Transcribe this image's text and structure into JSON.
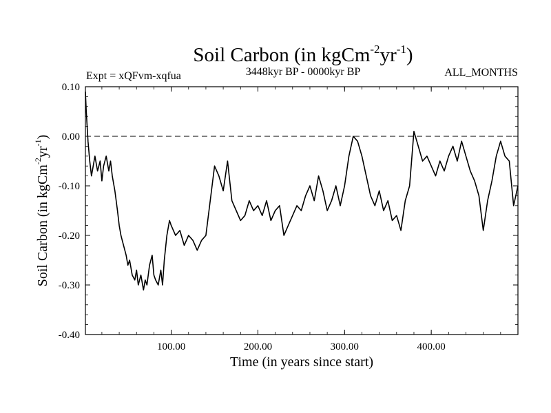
{
  "chart_data": {
    "type": "line",
    "title_main": "Soil Carbon (in kgCm",
    "title_sup1": "-2",
    "title_mid": "yr",
    "title_sup2": "-1",
    "title_end": ")",
    "subtitle_left": "Expt = xQFvm-xqfua",
    "subtitle_center": "3448kyr BP - 0000kyr BP",
    "subtitle_right": "ALL_MONTHS",
    "xlabel": "Time (in years since start)",
    "ylabel_main": "Soil Carbon (in kgCm",
    "ylabel_sup1": "-2",
    "ylabel_mid": "yr",
    "ylabel_sup2": "-1",
    "ylabel_end": ")",
    "xlim": [
      1,
      500
    ],
    "ylim": [
      -0.4,
      0.1
    ],
    "xticks": [
      100,
      200,
      300,
      400
    ],
    "xtick_labels": [
      "100.00",
      "200.00",
      "300.00",
      "400.00"
    ],
    "yticks": [
      0.1,
      0.0,
      -0.1,
      -0.2,
      -0.3,
      -0.4
    ],
    "ytick_labels": [
      "0.10",
      "0.00",
      "-0.10",
      "-0.20",
      "-0.30",
      "-0.40"
    ],
    "reference_line": {
      "y": 0.0,
      "style": "dashed"
    },
    "line_color": "#000000",
    "series": [
      {
        "name": "Soil Carbon",
        "x": [
          1,
          2,
          4,
          6,
          8,
          10,
          12,
          15,
          18,
          20,
          22,
          25,
          28,
          30,
          32,
          35,
          38,
          40,
          42,
          45,
          48,
          50,
          52,
          55,
          58,
          60,
          62,
          65,
          68,
          70,
          72,
          75,
          78,
          80,
          82,
          85,
          88,
          90,
          92,
          95,
          98,
          100,
          105,
          110,
          115,
          120,
          125,
          130,
          135,
          140,
          145,
          150,
          155,
          160,
          165,
          170,
          175,
          180,
          185,
          190,
          195,
          200,
          205,
          210,
          215,
          220,
          225,
          230,
          235,
          240,
          245,
          250,
          255,
          260,
          265,
          270,
          275,
          280,
          285,
          290,
          295,
          300,
          305,
          310,
          315,
          320,
          325,
          330,
          335,
          340,
          345,
          350,
          355,
          360,
          365,
          370,
          375,
          380,
          385,
          390,
          395,
          400,
          405,
          410,
          415,
          420,
          425,
          430,
          435,
          440,
          445,
          450,
          455,
          460,
          465,
          470,
          475,
          480,
          485,
          490,
          495,
          500
        ],
        "y": [
          0.09,
          0.05,
          -0.01,
          -0.05,
          -0.08,
          -0.06,
          -0.04,
          -0.07,
          -0.05,
          -0.09,
          -0.06,
          -0.04,
          -0.07,
          -0.05,
          -0.08,
          -0.11,
          -0.15,
          -0.18,
          -0.2,
          -0.22,
          -0.24,
          -0.26,
          -0.25,
          -0.28,
          -0.29,
          -0.27,
          -0.3,
          -0.28,
          -0.31,
          -0.29,
          -0.3,
          -0.26,
          -0.24,
          -0.28,
          -0.29,
          -0.3,
          -0.27,
          -0.3,
          -0.25,
          -0.2,
          -0.17,
          -0.18,
          -0.2,
          -0.19,
          -0.22,
          -0.2,
          -0.21,
          -0.23,
          -0.21,
          -0.2,
          -0.13,
          -0.06,
          -0.08,
          -0.11,
          -0.05,
          -0.13,
          -0.15,
          -0.17,
          -0.16,
          -0.13,
          -0.15,
          -0.14,
          -0.16,
          -0.13,
          -0.17,
          -0.15,
          -0.14,
          -0.2,
          -0.18,
          -0.16,
          -0.14,
          -0.15,
          -0.12,
          -0.1,
          -0.13,
          -0.08,
          -0.11,
          -0.15,
          -0.13,
          -0.1,
          -0.14,
          -0.1,
          -0.04,
          0.0,
          -0.01,
          -0.04,
          -0.08,
          -0.12,
          -0.14,
          -0.11,
          -0.15,
          -0.13,
          -0.17,
          -0.16,
          -0.19,
          -0.13,
          -0.1,
          0.01,
          -0.02,
          -0.05,
          -0.04,
          -0.06,
          -0.08,
          -0.05,
          -0.07,
          -0.04,
          -0.02,
          -0.05,
          -0.01,
          -0.04,
          -0.07,
          -0.09,
          -0.12,
          -0.19,
          -0.13,
          -0.09,
          -0.04,
          -0.01,
          -0.04,
          -0.05,
          -0.14,
          -0.1
        ]
      }
    ]
  }
}
